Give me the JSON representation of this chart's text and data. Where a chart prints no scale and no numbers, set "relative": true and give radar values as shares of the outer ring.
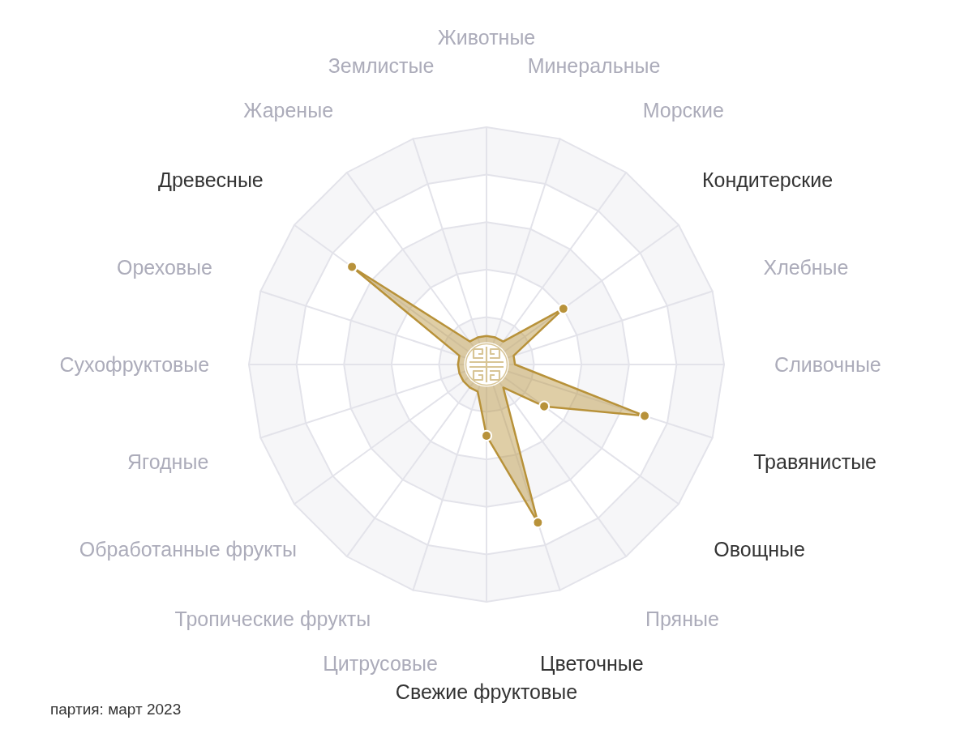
{
  "chart_data": {
    "type": "radar",
    "relative": true,
    "categories": [
      "Животные",
      "Минеральные",
      "Морские",
      "Кондитерские",
      "Хлебные",
      "Сливочные",
      "Травянистые",
      "Овощные",
      "Пряные",
      "Цветочные",
      "Свежие фруктовые",
      "Цитрусовые",
      "Тропические фрукты",
      "Обработанные фрукты",
      "Ягодные",
      "Сухофруктовые",
      "Ореховые",
      "Древесные",
      "Жареные",
      "Землистые"
    ],
    "series": [
      {
        "color": "#b8923a",
        "values": [
          0.12,
          0.12,
          0.12,
          0.4,
          0.12,
          0.12,
          0.7,
          0.3,
          0.12,
          0.7,
          0.3,
          0.12,
          0.12,
          0.12,
          0.12,
          0.12,
          0.12,
          0.7,
          0.12,
          0.12
        ]
      }
    ],
    "marker": "circle",
    "grid": true,
    "annotations": [
      "партия: март 2023"
    ]
  }
}
